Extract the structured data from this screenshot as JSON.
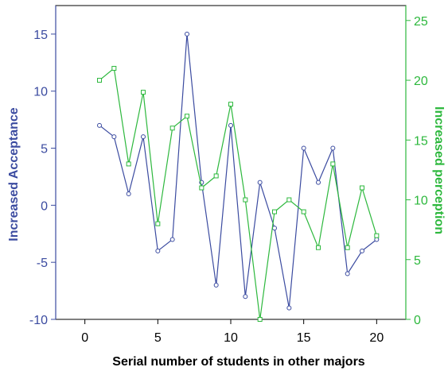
{
  "chart_data": {
    "type": "line",
    "title": "",
    "xlabel": "Serial number of students in other majors",
    "x": [
      1,
      2,
      3,
      4,
      5,
      6,
      7,
      8,
      9,
      10,
      11,
      12,
      13,
      14,
      15,
      16,
      17,
      18,
      19,
      20
    ],
    "xlim": [
      -2,
      22
    ],
    "xticks": [
      0,
      5,
      10,
      15,
      20
    ],
    "series": [
      {
        "name": "Increased Acceptance",
        "axis": "left",
        "color": "#3b4ba0",
        "marker": "circle",
        "values": [
          7,
          6,
          1,
          6,
          -4,
          -3,
          15,
          2,
          -7,
          7,
          -8,
          2,
          -2,
          -9,
          5,
          2,
          5,
          -6,
          -4,
          -3
        ]
      },
      {
        "name": "Increased perception",
        "axis": "right",
        "color": "#2db83d",
        "marker": "square",
        "values": [
          20,
          21,
          13,
          19,
          8,
          16,
          17,
          11,
          12,
          18,
          10,
          0,
          9,
          10,
          9,
          6,
          13,
          6,
          11,
          7
        ]
      }
    ],
    "y_left": {
      "label": "Increased Acceptance",
      "ylim": [
        -10,
        17.5
      ],
      "ticks": [
        -10,
        -5,
        0,
        5,
        10,
        15
      ],
      "color": "#3b4ba0"
    },
    "y_right": {
      "label": "Increased perception",
      "ylim": [
        0,
        26.25
      ],
      "ticks": [
        0,
        5,
        10,
        15,
        20,
        25
      ],
      "color": "#2db83d"
    },
    "grid": false,
    "legend": "none"
  }
}
